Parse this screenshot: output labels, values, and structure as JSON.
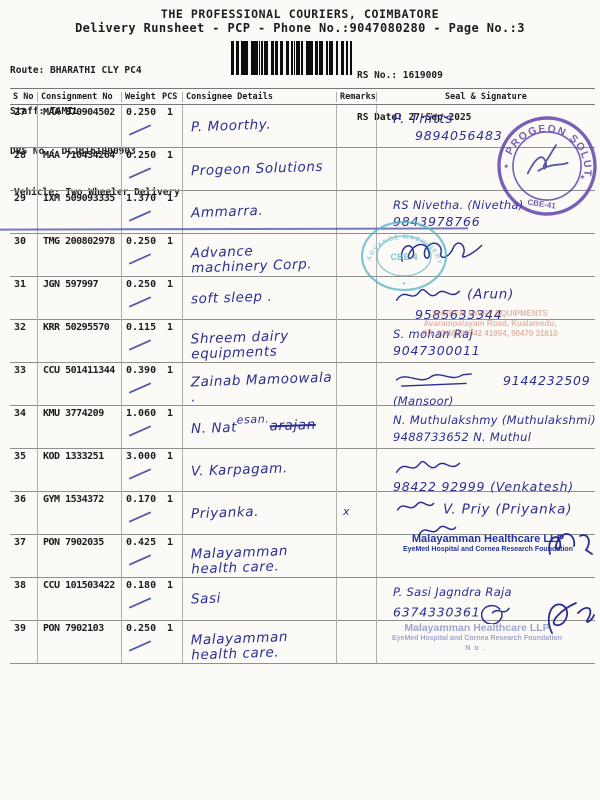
{
  "header": {
    "title": "THE PROFESSIONAL COURIERS, COIMBATORE",
    "subtitle": "Delivery Runsheet - PCP - Phone No.:9047080280 - Page No.:3",
    "route": "Route: BHARATHI CLY PC4",
    "staff": "Staff: TAMIL",
    "drs": "DRS No.: DCJB161900903",
    "vehicle": "Vehicle: Two Wheeler Delivery",
    "rs_no": "RS No.: 1619009",
    "rs_date": "RS Date: 27-Sep-2025"
  },
  "table": {
    "columns": [
      "S No",
      "Consignment No",
      "Weight",
      "PCS",
      "Consignee Details",
      "Remarks",
      "Seal & Signature"
    ],
    "rows": [
      {
        "sno": "27",
        "consignment": "MAA 870904502",
        "weight": "0.250",
        "pcs": "1",
        "consignee": "P. Moorthy.",
        "remark": "",
        "seal": [
          {
            "text": "P. Thitts",
            "cls": "sig"
          },
          {
            "text": "9894056483",
            "cls": "l2"
          }
        ]
      },
      {
        "sno": "28",
        "consignment": "MAA 710434264",
        "weight": "0.250",
        "pcs": "1",
        "consignee": "Progeon Solutions",
        "remark": "",
        "seal": []
      },
      {
        "sno": "29",
        "consignment": "IXM 509093335",
        "weight": "1.370",
        "pcs": "1",
        "consignee": "Ammarra.",
        "remark": "",
        "seal": [
          {
            "text": "RS Nivetha. (Nivetha)",
            "cls": "sm"
          },
          {
            "text": "9843978766",
            "cls": ""
          }
        ]
      },
      {
        "sno": "30",
        "consignment": "TMG 200802978",
        "weight": "0.250",
        "pcs": "1",
        "consignee": "Advance machinery Corp.",
        "remark": "",
        "seal": [
          {
            "scribble": 1
          }
        ]
      },
      {
        "sno": "31",
        "consignment": "JGN 597997",
        "weight": "0.250",
        "pcs": "1",
        "consignee": "soft sleep .",
        "remark": "",
        "seal": [
          {
            "scribble": 0,
            "text": "(Arun)",
            "cls": "sig"
          },
          {
            "text": "9585633344",
            "cls": "l2"
          }
        ]
      },
      {
        "sno": "32",
        "consignment": "KRR 50295570",
        "weight": "0.115",
        "pcs": "1",
        "consignee": "Shreem dairy equipments",
        "remark": "",
        "seal": [
          {
            "text": "S. mohan Raj",
            "cls": "sm sig"
          },
          {
            "text": "9047300011",
            "cls": ""
          }
        ]
      },
      {
        "sno": "33",
        "consignment": "CCU 501411344",
        "weight": "0.390",
        "pcs": "1",
        "consignee": "Zainab Mamoowala .",
        "remark": "",
        "seal": [
          {
            "scribble": 2,
            "text_right": "9144232509"
          },
          {
            "text": "(Mansoor)",
            "cls": "sm"
          }
        ]
      },
      {
        "sno": "34",
        "consignment": "KMU 3774209",
        "weight": "1.060",
        "pcs": "1",
        "consignee": "N. Natesan",
        "remark": "",
        "consignee_parts": {
          "prefix": "N. Nat",
          "struck": "arajan",
          "correction": "esan."
        },
        "seal": [
          {
            "text": "N. Muthulakshmy (Muthulakshmi)",
            "cls": "sm"
          },
          {
            "text": "9488733652  N. Muthul",
            "cls": "sm"
          }
        ]
      },
      {
        "sno": "35",
        "consignment": "KOD 1333251",
        "weight": "3.000",
        "pcs": "1",
        "consignee": "V. Karpagam.",
        "remark": "",
        "seal": [
          {
            "scribble": 0
          },
          {
            "text": "98422 92999  (Venkatesh)",
            "cls": ""
          }
        ]
      },
      {
        "sno": "36",
        "consignment": "GYM 1534372",
        "weight": "0.170",
        "pcs": "1",
        "consignee": "Priyanka.",
        "remark": "x",
        "seal": [
          {
            "scribble": 3,
            "text": "V. Priy (Priyanka)",
            "cls": "sig"
          },
          {
            "scribble": 3,
            "cls": "l2"
          }
        ]
      },
      {
        "sno": "37",
        "consignment": "PON 7902035",
        "weight": "0.425",
        "pcs": "1",
        "consignee": "Malayamman health care.",
        "remark": "",
        "seal": []
      },
      {
        "sno": "38",
        "consignment": "CCU 101503422",
        "weight": "0.180",
        "pcs": "1",
        "consignee": "Sasi",
        "remark": "",
        "seal": [
          {
            "text": "P. Sasi Jagndra Raja",
            "cls": "sig sm"
          },
          {
            "text": "6374330361",
            "cls": "",
            "scribble_after": 4
          }
        ]
      },
      {
        "sno": "39",
        "consignment": "PON 7902103",
        "weight": "0.250",
        "pcs": "1",
        "consignee": "Malayamman health care.",
        "remark": "",
        "seal": []
      }
    ]
  },
  "stamps": {
    "progeon": {
      "ring_text": "PROGEON SOLUTIONS",
      "bottom_text": "CBE-41"
    },
    "advance": {
      "ring_text": "ADVANCE MACHINERY",
      "center_text": "CBE-4"
    },
    "shreem": {
      "lines": [
        "SHREEM DAIRY EQUIPMENTS",
        "Avarampalayam Road, Kualamedu,",
        "Ph: (O/M) 99942 41994, 90470 31610"
      ]
    },
    "malayamman": {
      "line1": "Malayamman Healthcare LLP",
      "line2": "EyeMed Hospital and Cornea Research Foundation"
    },
    "malayamman_faded": {
      "line1": "Malayamman Healthcare LLP",
      "line2": "EyeMed Hospital and Cornea Research Foundation",
      "line3": "No."
    }
  }
}
